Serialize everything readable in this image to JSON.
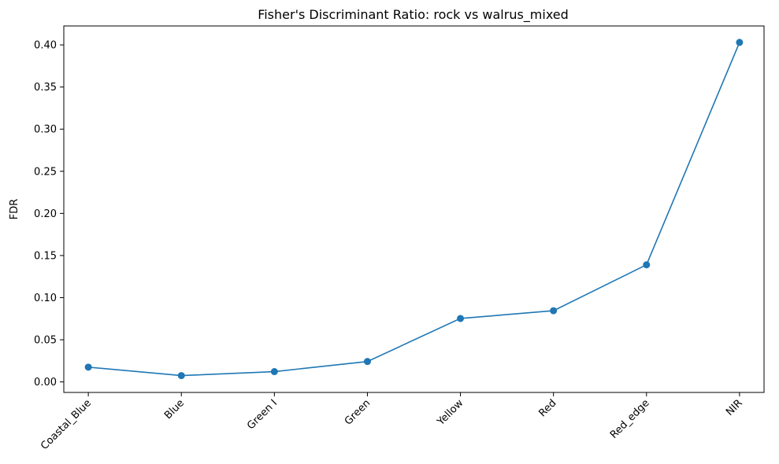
{
  "chart_data": {
    "type": "line",
    "title": "Fisher's Discriminant Ratio: rock vs walrus_mixed",
    "xlabel": "",
    "ylabel": "FDR",
    "categories": [
      "Coastal_Blue",
      "Blue",
      "Green I",
      "Green",
      "Yellow",
      "Red",
      "Red_edge",
      "NIR"
    ],
    "series": [
      {
        "values": [
          0.0175,
          0.0075,
          0.0122,
          0.0242,
          0.0753,
          0.0845,
          0.139,
          0.403
        ],
        "color": "#1f77b4",
        "marker": "circle"
      }
    ],
    "ylim": [
      -0.0125,
      0.4225
    ],
    "yticks": [
      0.0,
      0.05,
      0.1,
      0.15,
      0.2,
      0.25,
      0.3,
      0.35,
      0.4
    ],
    "ytick_labels": [
      "0.00",
      "0.05",
      "0.10",
      "0.15",
      "0.20",
      "0.25",
      "0.30",
      "0.35",
      "0.40"
    ],
    "grid": false,
    "legend": "none",
    "xtick_rotation_deg": 45
  }
}
